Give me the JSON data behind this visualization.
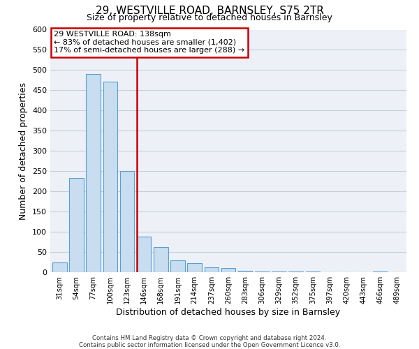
{
  "title": "29, WESTVILLE ROAD, BARNSLEY, S75 2TR",
  "subtitle": "Size of property relative to detached houses in Barnsley",
  "xlabel": "Distribution of detached houses by size in Barnsley",
  "ylabel": "Number of detached properties",
  "bar_labels": [
    "31sqm",
    "54sqm",
    "77sqm",
    "100sqm",
    "123sqm",
    "146sqm",
    "168sqm",
    "191sqm",
    "214sqm",
    "237sqm",
    "260sqm",
    "283sqm",
    "306sqm",
    "329sqm",
    "352sqm",
    "375sqm",
    "397sqm",
    "420sqm",
    "443sqm",
    "466sqm",
    "489sqm"
  ],
  "bar_values": [
    25,
    233,
    491,
    471,
    250,
    88,
    62,
    30,
    22,
    12,
    10,
    3,
    2,
    1,
    1,
    1,
    0,
    0,
    0,
    1,
    0
  ],
  "bar_color": "#c8ddf0",
  "bar_edge_color": "#5a9fd4",
  "vline_color": "#cc0000",
  "annotation_title": "29 WESTVILLE ROAD: 138sqm",
  "annotation_line1": "← 83% of detached houses are smaller (1,402)",
  "annotation_line2": "17% of semi-detached houses are larger (288) →",
  "annotation_box_color": "#ffffff",
  "annotation_box_edge": "#cc0000",
  "ylim": [
    0,
    600
  ],
  "yticks": [
    0,
    50,
    100,
    150,
    200,
    250,
    300,
    350,
    400,
    450,
    500,
    550,
    600
  ],
  "footer_line1": "Contains HM Land Registry data © Crown copyright and database right 2024.",
  "footer_line2": "Contains public sector information licensed under the Open Government Licence v3.0.",
  "plot_bg_color": "#edf1f7",
  "grid_color": "#c8cdd8"
}
